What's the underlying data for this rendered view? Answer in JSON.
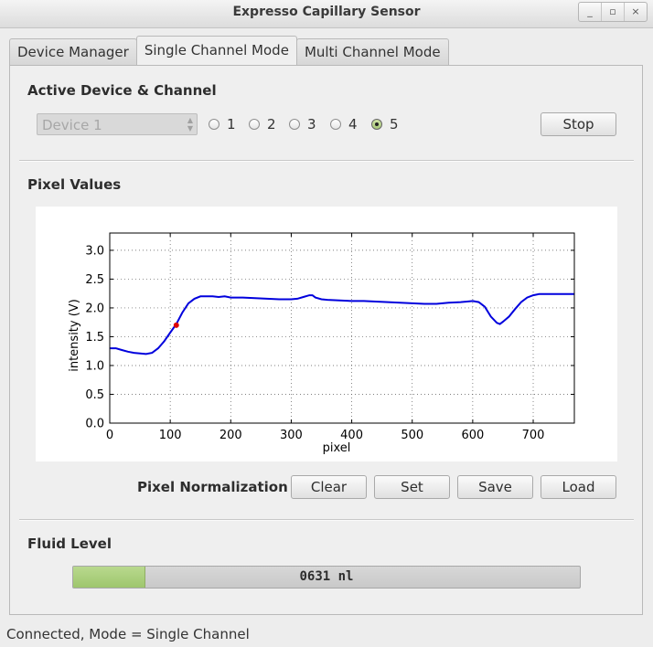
{
  "window": {
    "title": "Expresso Capillary Sensor",
    "minimize_label": "_",
    "maximize_label": "▫",
    "close_label": "×"
  },
  "tabs": [
    {
      "label": "Device Manager"
    },
    {
      "label": "Single Channel Mode"
    },
    {
      "label": "Multi Channel Mode"
    }
  ],
  "active_device": {
    "heading": "Active Device & Channel",
    "device_select": {
      "value": "Device 1"
    },
    "channels": [
      {
        "label": "1",
        "checked": false
      },
      {
        "label": "2",
        "checked": false
      },
      {
        "label": "3",
        "checked": false
      },
      {
        "label": "4",
        "checked": false
      },
      {
        "label": "5",
        "checked": true
      }
    ],
    "stop_label": "Stop"
  },
  "pixel_values": {
    "heading": "Pixel Values"
  },
  "chart_data": {
    "type": "line",
    "title": "",
    "xlabel": "pixel",
    "ylabel": "intensity (V)",
    "xlim": [
      0,
      768
    ],
    "ylim": [
      0.0,
      3.3
    ],
    "grid": true,
    "xticks": [
      "0",
      "100",
      "200",
      "300",
      "400",
      "500",
      "600",
      "700"
    ],
    "yticks": [
      "0.0",
      "0.5",
      "1.0",
      "1.5",
      "2.0",
      "2.5",
      "3.0"
    ],
    "series": [
      {
        "name": "intensity",
        "color": "#0000dd",
        "x": [
          0,
          10,
          20,
          30,
          40,
          50,
          60,
          70,
          80,
          90,
          100,
          110,
          120,
          130,
          140,
          150,
          160,
          170,
          180,
          190,
          200,
          220,
          240,
          260,
          280,
          300,
          310,
          320,
          330,
          335,
          340,
          350,
          360,
          380,
          400,
          420,
          440,
          460,
          480,
          500,
          520,
          540,
          560,
          580,
          600,
          610,
          620,
          630,
          640,
          645,
          650,
          660,
          670,
          680,
          690,
          700,
          710,
          720,
          740,
          760,
          768
        ],
        "y": [
          1.3,
          1.3,
          1.27,
          1.24,
          1.22,
          1.21,
          1.2,
          1.22,
          1.3,
          1.42,
          1.57,
          1.72,
          1.92,
          2.08,
          2.16,
          2.2,
          2.2,
          2.2,
          2.19,
          2.2,
          2.18,
          2.18,
          2.17,
          2.16,
          2.15,
          2.15,
          2.16,
          2.19,
          2.22,
          2.22,
          2.18,
          2.15,
          2.14,
          2.13,
          2.12,
          2.12,
          2.11,
          2.1,
          2.09,
          2.08,
          2.07,
          2.07,
          2.09,
          2.1,
          2.12,
          2.1,
          2.02,
          1.85,
          1.74,
          1.72,
          1.76,
          1.85,
          1.98,
          2.1,
          2.18,
          2.22,
          2.24,
          2.24,
          2.24,
          2.24,
          2.24
        ]
      }
    ],
    "marker": {
      "x": 110,
      "y": 1.7,
      "color": "#dd0000"
    }
  },
  "normalization": {
    "label": "Pixel Normalization",
    "clear_label": "Clear",
    "set_label": "Set",
    "save_label": "Save",
    "load_label": "Load"
  },
  "fluid_level": {
    "heading": "Fluid Level",
    "value_text": "0631 nl",
    "fraction": 0.14
  },
  "status": {
    "text": "Connected, Mode = Single Channel"
  }
}
